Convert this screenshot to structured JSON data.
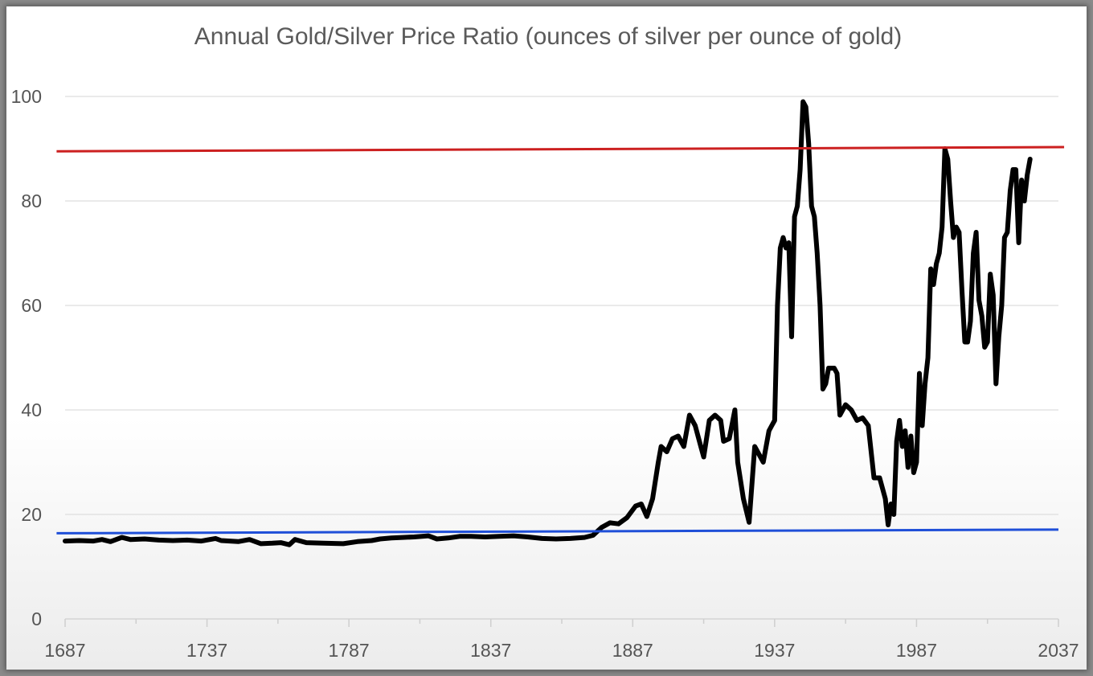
{
  "chart_data": {
    "type": "line",
    "title": "Annual Gold/Silver Price Ratio (ounces of silver per ounce of gold)",
    "xlabel": "",
    "ylabel": "",
    "xlim": [
      1687,
      2037
    ],
    "ylim": [
      0,
      100
    ],
    "x_ticks": [
      1687,
      1737,
      1787,
      1837,
      1887,
      1937,
      1987,
      2037
    ],
    "y_ticks": [
      0,
      20,
      40,
      60,
      80,
      100
    ],
    "grid": "horizontal",
    "legend": "none",
    "series": [
      {
        "color": "#000000",
        "points": [
          [
            1687,
            14.9
          ],
          [
            1692,
            15.0
          ],
          [
            1697,
            14.9
          ],
          [
            1700,
            15.2
          ],
          [
            1703,
            14.8
          ],
          [
            1707,
            15.6
          ],
          [
            1710,
            15.2
          ],
          [
            1715,
            15.3
          ],
          [
            1720,
            15.1
          ],
          [
            1725,
            15.0
          ],
          [
            1730,
            15.1
          ],
          [
            1735,
            14.9
          ],
          [
            1740,
            15.4
          ],
          [
            1742,
            15.0
          ],
          [
            1748,
            14.8
          ],
          [
            1752,
            15.2
          ],
          [
            1756,
            14.4
          ],
          [
            1760,
            14.5
          ],
          [
            1763,
            14.6
          ],
          [
            1766,
            14.2
          ],
          [
            1768,
            15.2
          ],
          [
            1772,
            14.6
          ],
          [
            1778,
            14.5
          ],
          [
            1785,
            14.4
          ],
          [
            1790,
            14.8
          ],
          [
            1795,
            15.0
          ],
          [
            1798,
            15.3
          ],
          [
            1802,
            15.5
          ],
          [
            1806,
            15.6
          ],
          [
            1810,
            15.7
          ],
          [
            1815,
            15.9
          ],
          [
            1818,
            15.3
          ],
          [
            1822,
            15.5
          ],
          [
            1826,
            15.8
          ],
          [
            1830,
            15.8
          ],
          [
            1835,
            15.7
          ],
          [
            1840,
            15.8
          ],
          [
            1845,
            15.9
          ],
          [
            1850,
            15.7
          ],
          [
            1855,
            15.4
          ],
          [
            1860,
            15.3
          ],
          [
            1865,
            15.4
          ],
          [
            1870,
            15.6
          ],
          [
            1873,
            16.0
          ],
          [
            1876,
            17.5
          ],
          [
            1879,
            18.4
          ],
          [
            1882,
            18.2
          ],
          [
            1885,
            19.4
          ],
          [
            1888,
            21.6
          ],
          [
            1890,
            22.0
          ],
          [
            1892,
            19.6
          ],
          [
            1894,
            23.0
          ],
          [
            1896,
            30.0
          ],
          [
            1897,
            33.0
          ],
          [
            1899,
            32.0
          ],
          [
            1901,
            34.5
          ],
          [
            1903,
            35.0
          ],
          [
            1905,
            33.0
          ],
          [
            1907,
            39.0
          ],
          [
            1909,
            37.0
          ],
          [
            1911,
            33.0
          ],
          [
            1912,
            31.0
          ],
          [
            1914,
            38.0
          ],
          [
            1916,
            39.0
          ],
          [
            1918,
            38.0
          ],
          [
            1919,
            34.0
          ],
          [
            1921,
            34.5
          ],
          [
            1923,
            40.0
          ],
          [
            1924,
            30.0
          ],
          [
            1926,
            23.0
          ],
          [
            1928,
            18.5
          ],
          [
            1930,
            33.0
          ],
          [
            1932,
            31.0
          ],
          [
            1933,
            30.0
          ],
          [
            1935,
            36.0
          ],
          [
            1936,
            37.0
          ],
          [
            1937,
            38.0
          ],
          [
            1938,
            60.0
          ],
          [
            1939,
            71.0
          ],
          [
            1940,
            73.0
          ],
          [
            1941,
            71.0
          ],
          [
            1942,
            72.0
          ],
          [
            1943,
            54.0
          ],
          [
            1944,
            77.0
          ],
          [
            1945,
            79.0
          ],
          [
            1946,
            86.0
          ],
          [
            1947,
            99.0
          ],
          [
            1948,
            98.0
          ],
          [
            1949,
            91.0
          ],
          [
            1950,
            79.0
          ],
          [
            1951,
            77.0
          ],
          [
            1952,
            70.0
          ],
          [
            1953,
            60.0
          ],
          [
            1954,
            44.0
          ],
          [
            1955,
            45.0
          ],
          [
            1956,
            48.0
          ],
          [
            1958,
            48.0
          ],
          [
            1959,
            47.0
          ],
          [
            1960,
            39.0
          ],
          [
            1962,
            41.0
          ],
          [
            1964,
            40.0
          ],
          [
            1966,
            38.0
          ],
          [
            1968,
            38.5
          ],
          [
            1970,
            37.0
          ],
          [
            1972,
            27.0
          ],
          [
            1974,
            27.0
          ],
          [
            1976,
            23.0
          ],
          [
            1977,
            18.0
          ],
          [
            1978,
            22.0
          ],
          [
            1979,
            20.0
          ],
          [
            1980,
            34.0
          ],
          [
            1981,
            38.0
          ],
          [
            1982,
            33.0
          ],
          [
            1983,
            36.0
          ],
          [
            1984,
            29.0
          ],
          [
            1985,
            35.0
          ],
          [
            1986,
            28.0
          ],
          [
            1987,
            30.0
          ],
          [
            1988,
            47.0
          ],
          [
            1989,
            37.0
          ],
          [
            1990,
            45.0
          ],
          [
            1991,
            50.0
          ],
          [
            1992,
            67.0
          ],
          [
            1993,
            64.0
          ],
          [
            1994,
            68.0
          ],
          [
            1995,
            70.0
          ],
          [
            1996,
            75.0
          ],
          [
            1997,
            90.0
          ],
          [
            1998,
            88.0
          ],
          [
            1999,
            80.0
          ],
          [
            2000,
            73.0
          ],
          [
            2001,
            75.0
          ],
          [
            2002,
            74.0
          ],
          [
            2003,
            63.0
          ],
          [
            2004,
            53.0
          ],
          [
            2005,
            53.0
          ],
          [
            2006,
            57.0
          ],
          [
            2007,
            70.0
          ],
          [
            2008,
            74.0
          ],
          [
            2009,
            61.0
          ],
          [
            2010,
            58.0
          ],
          [
            2011,
            52.0
          ],
          [
            2012,
            53.0
          ],
          [
            2013,
            66.0
          ],
          [
            2014,
            62.0
          ],
          [
            2015,
            45.0
          ],
          [
            2016,
            54.0
          ],
          [
            2017,
            60.0
          ],
          [
            2018,
            73.0
          ],
          [
            2019,
            74.0
          ],
          [
            2020,
            82.0
          ],
          [
            2021,
            86.0
          ],
          [
            2022,
            86.0
          ],
          [
            2023,
            72.0
          ],
          [
            2024,
            84.0
          ],
          [
            2025,
            80.0
          ],
          [
            2026,
            85.0
          ],
          [
            2027,
            88.0
          ]
        ]
      }
    ],
    "reference_lines": [
      {
        "color": "#cc2020",
        "x0": 1684,
        "y0": 89.5,
        "x1": 2039,
        "y1": 90.3
      },
      {
        "color": "#1f4fd8",
        "x0": 1684,
        "y0": 16.4,
        "x1": 2037,
        "y1": 17.1
      }
    ]
  }
}
